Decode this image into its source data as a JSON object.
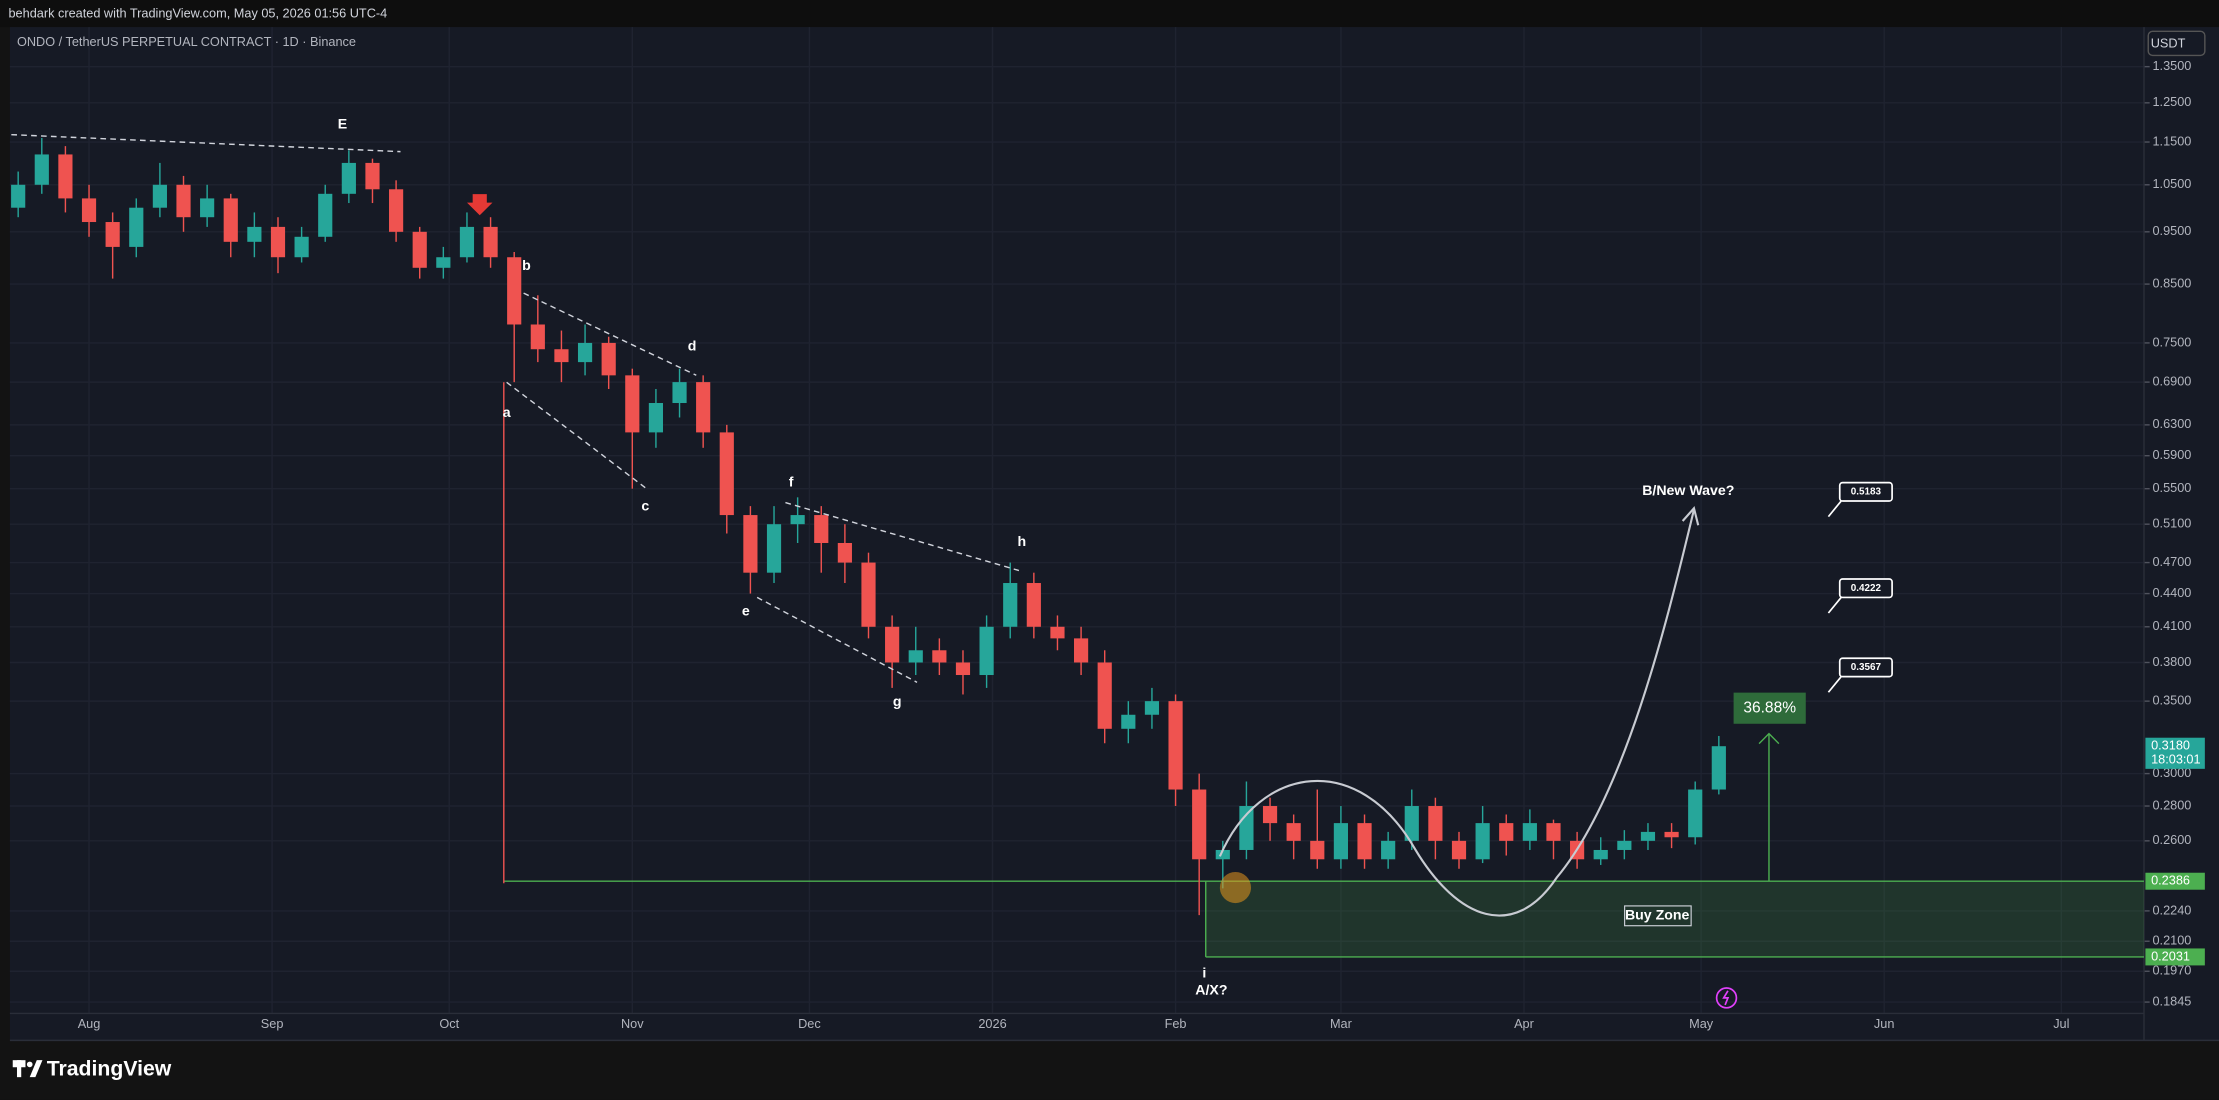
{
  "header": {
    "credit": "behdark created with TradingView.com, May 05, 2026 01:56 UTC-4"
  },
  "chart_data": {
    "type": "candlestick",
    "title": "ONDO / TetherUS PERPETUAL CONTRACT · 1D · Binance",
    "currency": "USDT",
    "log_scale": true,
    "grid": true,
    "up_color": "#26a69a",
    "down_color": "#ef5350",
    "xlim": [
      -13.4,
      348
    ],
    "xticks": [
      {
        "value": 0,
        "label": "Aug"
      },
      {
        "value": 31,
        "label": "Sep"
      },
      {
        "value": 61,
        "label": "Oct"
      },
      {
        "value": 92,
        "label": "Nov"
      },
      {
        "value": 122,
        "label": "Dec"
      },
      {
        "value": 153,
        "label": "2026"
      },
      {
        "value": 184,
        "label": "Feb"
      },
      {
        "value": 212,
        "label": "Mar"
      },
      {
        "value": 243,
        "label": "Apr"
      },
      {
        "value": 273,
        "label": "May"
      },
      {
        "value": 304,
        "label": "Jun"
      },
      {
        "value": 334,
        "label": "Jul"
      }
    ],
    "ylim": [
      0.179,
      1.473
    ],
    "yticks": [
      {
        "value": 1.35,
        "label": "1.3500"
      },
      {
        "value": 1.25,
        "label": "1.2500"
      },
      {
        "value": 1.15,
        "label": "1.1500"
      },
      {
        "value": 1.05,
        "label": "1.0500"
      },
      {
        "value": 0.95,
        "label": "0.9500"
      },
      {
        "value": 0.85,
        "label": "0.8500"
      },
      {
        "value": 0.75,
        "label": "0.7500"
      },
      {
        "value": 0.69,
        "label": "0.6900"
      },
      {
        "value": 0.63,
        "label": "0.6300"
      },
      {
        "value": 0.59,
        "label": "0.5900"
      },
      {
        "value": 0.55,
        "label": "0.5500"
      },
      {
        "value": 0.51,
        "label": "0.5100"
      },
      {
        "value": 0.47,
        "label": "0.4700"
      },
      {
        "value": 0.44,
        "label": "0.4400"
      },
      {
        "value": 0.41,
        "label": "0.4100"
      },
      {
        "value": 0.38,
        "label": "0.3800"
      },
      {
        "value": 0.35,
        "label": "0.3500"
      },
      {
        "value": 0.3,
        "label": "0.3000"
      },
      {
        "value": 0.28,
        "label": "0.2800"
      },
      {
        "value": 0.26,
        "label": "0.2600"
      },
      {
        "value": 0.224,
        "label": "0.2240"
      },
      {
        "value": 0.21,
        "label": "0.2100"
      },
      {
        "value": 0.197,
        "label": "0.1970"
      },
      {
        "value": 0.1845,
        "label": "0.1845"
      }
    ],
    "candles": {
      "x": [
        -12,
        -8,
        -4,
        0,
        4,
        8,
        12,
        16,
        20,
        24,
        28,
        32,
        36,
        40,
        44,
        48,
        52,
        56,
        60,
        64,
        68,
        72,
        76,
        80,
        84,
        88,
        92,
        96,
        100,
        104,
        108,
        112,
        116,
        120,
        124,
        128,
        132,
        136,
        140,
        144,
        148,
        152,
        156,
        160,
        164,
        168,
        172,
        176,
        180,
        184,
        188,
        192,
        196,
        200,
        204,
        208,
        212,
        216,
        220,
        224,
        228,
        232,
        236,
        240,
        244,
        248,
        252,
        256,
        260,
        264,
        268,
        272,
        276
      ],
      "open": [
        1.0,
        1.05,
        1.12,
        1.02,
        0.97,
        0.92,
        1.0,
        1.05,
        0.98,
        1.02,
        0.93,
        0.96,
        0.9,
        0.94,
        1.03,
        1.1,
        1.04,
        0.95,
        0.88,
        0.9,
        0.96,
        0.9,
        0.78,
        0.74,
        0.72,
        0.75,
        0.7,
        0.62,
        0.66,
        0.69,
        0.62,
        0.52,
        0.46,
        0.51,
        0.52,
        0.49,
        0.47,
        0.41,
        0.38,
        0.39,
        0.38,
        0.37,
        0.41,
        0.45,
        0.41,
        0.4,
        0.38,
        0.33,
        0.34,
        0.35,
        0.29,
        0.25,
        0.255,
        0.28,
        0.27,
        0.26,
        0.25,
        0.27,
        0.25,
        0.26,
        0.28,
        0.26,
        0.25,
        0.27,
        0.26,
        0.27,
        0.26,
        0.25,
        0.255,
        0.26,
        0.265,
        0.262,
        0.29
      ],
      "high": [
        1.08,
        1.16,
        1.14,
        1.05,
        0.99,
        1.02,
        1.1,
        1.07,
        1.05,
        1.03,
        0.99,
        0.98,
        0.96,
        1.05,
        1.13,
        1.11,
        1.06,
        0.96,
        0.92,
        0.99,
        0.98,
        0.91,
        0.83,
        0.77,
        0.78,
        0.76,
        0.71,
        0.68,
        0.71,
        0.7,
        0.63,
        0.53,
        0.53,
        0.54,
        0.53,
        0.51,
        0.48,
        0.42,
        0.41,
        0.4,
        0.39,
        0.42,
        0.47,
        0.46,
        0.42,
        0.41,
        0.39,
        0.35,
        0.36,
        0.355,
        0.3,
        0.26,
        0.295,
        0.285,
        0.275,
        0.29,
        0.28,
        0.275,
        0.265,
        0.29,
        0.285,
        0.265,
        0.28,
        0.275,
        0.278,
        0.272,
        0.265,
        0.262,
        0.266,
        0.27,
        0.27,
        0.295,
        0.325
      ],
      "low": [
        0.98,
        1.03,
        0.99,
        0.94,
        0.86,
        0.9,
        0.98,
        0.95,
        0.96,
        0.9,
        0.9,
        0.87,
        0.89,
        0.93,
        1.01,
        1.01,
        0.93,
        0.86,
        0.86,
        0.89,
        0.88,
        0.69,
        0.72,
        0.69,
        0.7,
        0.68,
        0.55,
        0.6,
        0.64,
        0.6,
        0.5,
        0.44,
        0.45,
        0.49,
        0.46,
        0.45,
        0.4,
        0.36,
        0.37,
        0.37,
        0.355,
        0.36,
        0.4,
        0.4,
        0.39,
        0.37,
        0.32,
        0.32,
        0.33,
        0.28,
        0.222,
        0.235,
        0.25,
        0.26,
        0.25,
        0.245,
        0.245,
        0.245,
        0.245,
        0.255,
        0.25,
        0.245,
        0.248,
        0.252,
        0.255,
        0.25,
        0.245,
        0.247,
        0.25,
        0.255,
        0.256,
        0.258,
        0.287
      ],
      "close": [
        1.05,
        1.12,
        1.02,
        0.97,
        0.92,
        1.0,
        1.05,
        0.98,
        1.02,
        0.93,
        0.96,
        0.9,
        0.94,
        1.03,
        1.1,
        1.04,
        0.95,
        0.88,
        0.9,
        0.96,
        0.9,
        0.78,
        0.74,
        0.72,
        0.75,
        0.7,
        0.62,
        0.66,
        0.69,
        0.62,
        0.52,
        0.46,
        0.51,
        0.52,
        0.49,
        0.47,
        0.41,
        0.38,
        0.39,
        0.38,
        0.37,
        0.41,
        0.45,
        0.41,
        0.4,
        0.38,
        0.33,
        0.34,
        0.35,
        0.29,
        0.25,
        0.255,
        0.28,
        0.27,
        0.26,
        0.25,
        0.27,
        0.25,
        0.26,
        0.28,
        0.26,
        0.25,
        0.27,
        0.26,
        0.27,
        0.26,
        0.25,
        0.255,
        0.26,
        0.265,
        0.262,
        0.29,
        0.318
      ]
    },
    "price_labels": [
      {
        "value": 0.318,
        "label": "0.3180",
        "sub": "18:03:01",
        "color": "#26a69a"
      },
      {
        "value": 0.2386,
        "label": "0.2386",
        "color": "#4caf50"
      },
      {
        "value": 0.2031,
        "label": "0.2031",
        "color": "#4caf50"
      }
    ],
    "buy_zone": "Buy Zone",
    "gain": {
      "value": 36.88,
      "label": "36.88%"
    },
    "targets": [
      {
        "value": 0.5183,
        "label": "0.5183"
      },
      {
        "value": 0.4222,
        "label": "0.4222"
      },
      {
        "value": 0.3567,
        "label": "0.3567"
      }
    ],
    "projection_label": "B/New Wave?",
    "wave_labels": [
      "E",
      "a",
      "b",
      "c",
      "d",
      "e",
      "f",
      "g",
      "h",
      "i",
      "A/X?"
    ]
  },
  "footer": {
    "brand": "TradingView"
  }
}
